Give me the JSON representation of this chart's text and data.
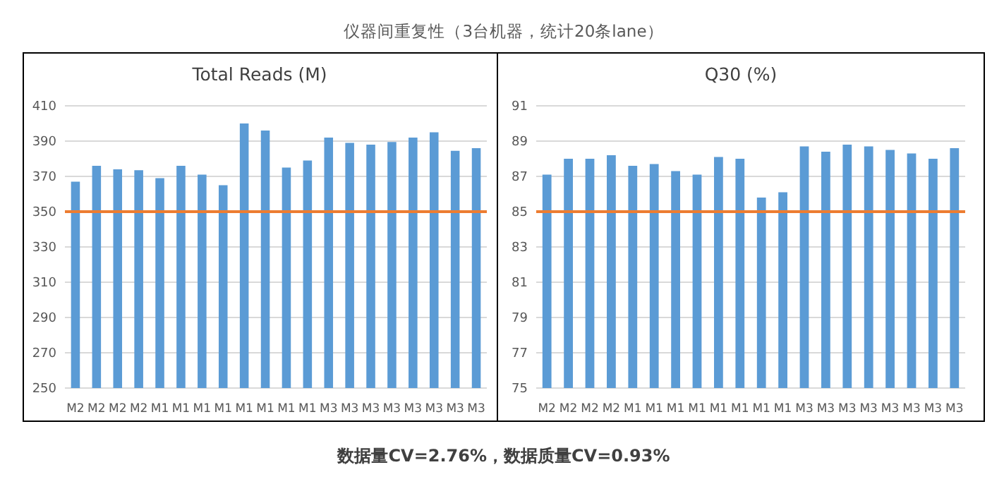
{
  "chart_data": [
    {
      "type": "bar",
      "title": "Total Reads (M)",
      "annotations": [
        "仪器间重复性（3台机器，统计20条lane）",
        "数据量CV=2.76%，数据质量CV=0.93%"
      ],
      "categories": [
        "M2",
        "M2",
        "M2",
        "M2",
        "M1",
        "M1",
        "M1",
        "M1",
        "M1",
        "M1",
        "M1",
        "M1",
        "M3",
        "M3",
        "M3",
        "M3",
        "M3",
        "M3",
        "M3",
        "M3"
      ],
      "values": [
        367,
        376,
        374,
        373.5,
        369,
        376,
        371,
        365,
        400,
        396,
        375,
        379,
        392,
        389,
        388,
        389.5,
        392,
        395,
        384.5,
        386
      ],
      "color": "#5b9bd5",
      "ylim": [
        250,
        410
      ],
      "yticks": [
        250,
        270,
        290,
        310,
        330,
        350,
        370,
        390,
        410
      ],
      "grid": "y",
      "ref_lines": [
        {
          "axis": "y",
          "value": 350,
          "color": "#ed7d31"
        }
      ]
    },
    {
      "type": "bar",
      "title": "Q30 (%)",
      "categories": [
        "M2",
        "M2",
        "M2",
        "M2",
        "M1",
        "M1",
        "M1",
        "M1",
        "M1",
        "M1",
        "M1",
        "M1",
        "M3",
        "M3",
        "M3",
        "M3",
        "M3",
        "M3",
        "M3",
        "M3"
      ],
      "values": [
        87.1,
        88.0,
        88.0,
        88.2,
        87.6,
        87.7,
        87.3,
        87.1,
        88.1,
        88.0,
        85.8,
        86.1,
        88.7,
        88.4,
        88.8,
        88.7,
        88.5,
        88.3,
        88.0,
        88.6
      ],
      "color": "#5b9bd5",
      "ylim": [
        75,
        91
      ],
      "yticks": [
        75,
        77,
        79,
        81,
        83,
        85,
        87,
        89,
        91
      ],
      "grid": "y",
      "ref_lines": [
        {
          "axis": "y",
          "value": 85,
          "color": "#ed7d31"
        }
      ]
    }
  ]
}
